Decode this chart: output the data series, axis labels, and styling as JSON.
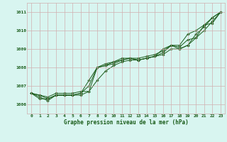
{
  "title": "Graphe pression niveau de la mer (hPa)",
  "background_color": "#d8f5f0",
  "grid_color": "#d0b0b0",
  "line_color": "#1a5c1a",
  "marker_color": "#1a5c1a",
  "xlim": [
    -0.5,
    23.5
  ],
  "ylim": [
    1005.5,
    1011.5
  ],
  "yticks": [
    1006,
    1007,
    1008,
    1009,
    1010,
    1011
  ],
  "xticks": [
    0,
    1,
    2,
    3,
    4,
    5,
    6,
    7,
    8,
    9,
    10,
    11,
    12,
    13,
    14,
    15,
    16,
    17,
    18,
    19,
    20,
    21,
    22,
    23
  ],
  "lines": [
    [
      1006.6,
      1006.4,
      1006.2,
      1006.5,
      1006.5,
      1006.5,
      1006.5,
      1006.7,
      1008.0,
      1008.1,
      1008.2,
      1008.4,
      1008.5,
      1008.4,
      1008.5,
      1008.6,
      1008.8,
      1009.2,
      1009.0,
      1009.2,
      1009.8,
      1010.2,
      1010.7,
      1011.0
    ],
    [
      1006.6,
      1006.3,
      1006.3,
      1006.5,
      1006.5,
      1006.5,
      1006.6,
      1007.3,
      1008.0,
      1008.1,
      1008.3,
      1008.4,
      1008.5,
      1008.4,
      1008.5,
      1008.6,
      1009.0,
      1009.2,
      1009.2,
      1009.8,
      1010.0,
      1010.3,
      1010.7,
      1011.0
    ],
    [
      1006.6,
      1006.5,
      1006.3,
      1006.5,
      1006.5,
      1006.5,
      1006.6,
      1007.0,
      1008.0,
      1008.2,
      1008.3,
      1008.5,
      1008.5,
      1008.5,
      1008.6,
      1008.7,
      1008.9,
      1009.2,
      1009.1,
      1009.5,
      1009.6,
      1010.3,
      1010.4,
      1011.0
    ],
    [
      1006.6,
      1006.5,
      1006.4,
      1006.6,
      1006.6,
      1006.6,
      1006.7,
      1006.7,
      1007.3,
      1007.8,
      1008.1,
      1008.3,
      1008.4,
      1008.4,
      1008.5,
      1008.6,
      1008.7,
      1009.0,
      1009.0,
      1009.2,
      1009.6,
      1010.0,
      1010.5,
      1011.0
    ]
  ]
}
